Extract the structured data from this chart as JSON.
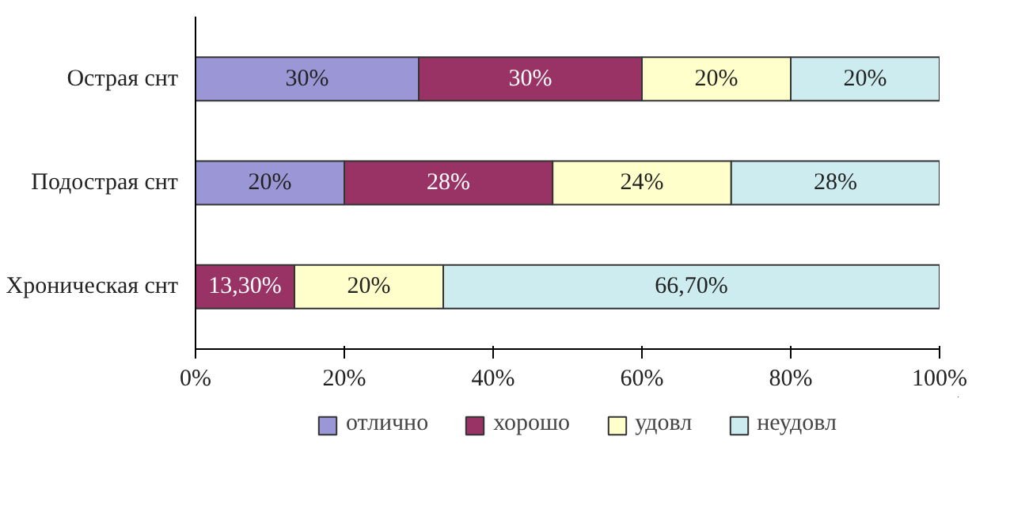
{
  "chart_data": {
    "type": "bar",
    "orientation": "horizontal",
    "stacked": true,
    "categories": [
      "Острая снт",
      "Подострая снт",
      "Хроническая снт"
    ],
    "series": [
      {
        "name": "отлично",
        "color": "#9b97d6",
        "values": [
          30,
          20,
          0
        ],
        "value_labels": [
          "30%",
          "20%",
          null
        ]
      },
      {
        "name": "хорошо",
        "color": "#993366",
        "values": [
          30,
          28,
          13.3
        ],
        "value_labels": [
          "30%",
          "28%",
          "13,30%"
        ]
      },
      {
        "name": "удовл",
        "color": "#ffffcc",
        "values": [
          20,
          24,
          20
        ],
        "value_labels": [
          "20%",
          "24%",
          "20%"
        ]
      },
      {
        "name": "неудовл",
        "color": "#ccecf0",
        "values": [
          20,
          28,
          66.7
        ],
        "value_labels": [
          "20%",
          "28%",
          "66,70%"
        ]
      }
    ],
    "xlim": [
      0,
      100
    ],
    "xticks": [
      {
        "value": 0,
        "label": "0%"
      },
      {
        "value": 20,
        "label": "20%"
      },
      {
        "value": 40,
        "label": "40%"
      },
      {
        "value": 60,
        "label": "60%"
      },
      {
        "value": 80,
        "label": "80%"
      },
      {
        "value": 100,
        "label": "100%"
      }
    ],
    "legend": "bottom"
  }
}
